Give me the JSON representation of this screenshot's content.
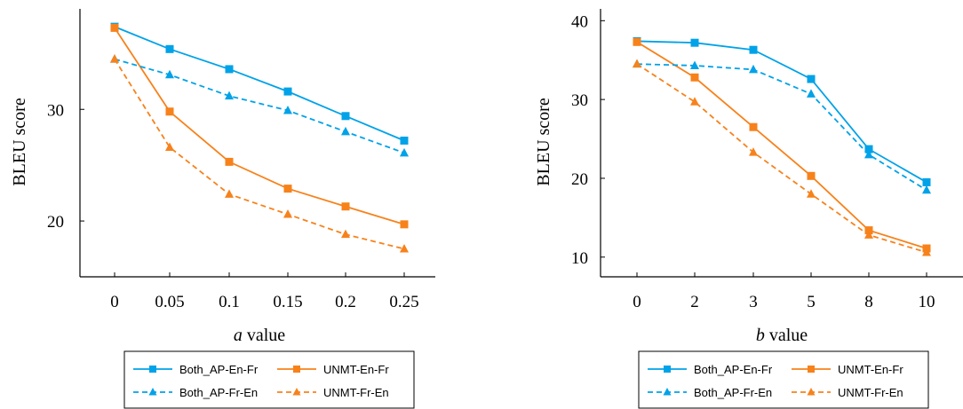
{
  "figure": {
    "colors": {
      "both": "#00a2e8",
      "unmt": "#f7821b"
    },
    "legend": [
      {
        "name": "Both_AP-En-Fr",
        "color": "#00a2e8",
        "dash": false,
        "marker": "square"
      },
      {
        "name": "UNMT-En-Fr",
        "color": "#f7821b",
        "dash": false,
        "marker": "square"
      },
      {
        "name": "Both_AP-Fr-En",
        "color": "#00a2e8",
        "dash": true,
        "marker": "triangle"
      },
      {
        "name": "UNMT-Fr-En",
        "color": "#f7821b",
        "dash": true,
        "marker": "triangle"
      }
    ]
  },
  "chart_data": [
    {
      "type": "line",
      "xlabel_var": "a",
      "xlabel_rest": " value",
      "ylabel": "BLEU score",
      "categories": [
        "0",
        "0.05",
        "0.1",
        "0.15",
        "0.2",
        "0.25"
      ],
      "ylim": [
        15,
        39
      ],
      "yticks": [
        20,
        30
      ],
      "grid": false,
      "legend_position": "below",
      "series": [
        {
          "name": "Both_AP-En-Fr",
          "color": "#00a2e8",
          "dash": false,
          "marker": "square",
          "values": [
            37.4,
            35.4,
            33.6,
            31.6,
            29.4,
            27.2
          ]
        },
        {
          "name": "UNMT-En-Fr",
          "color": "#f7821b",
          "dash": false,
          "marker": "square",
          "values": [
            37.3,
            29.8,
            25.3,
            22.9,
            21.3,
            19.7
          ]
        },
        {
          "name": "Both_AP-Fr-En",
          "color": "#00a2e8",
          "dash": true,
          "marker": "triangle",
          "values": [
            34.5,
            33.1,
            31.2,
            29.9,
            28.0,
            26.1
          ]
        },
        {
          "name": "UNMT-Fr-En",
          "color": "#f7821b",
          "dash": true,
          "marker": "triangle",
          "values": [
            34.5,
            26.6,
            22.4,
            20.6,
            18.8,
            17.5
          ]
        }
      ]
    },
    {
      "type": "line",
      "xlabel_var": "b",
      "xlabel_rest": " value",
      "ylabel": "BLEU score",
      "categories": [
        "0",
        "2",
        "3",
        "5",
        "8",
        "10"
      ],
      "ylim": [
        7.5,
        41.5
      ],
      "yticks": [
        10,
        20,
        30,
        40
      ],
      "grid": false,
      "legend_position": "below",
      "series": [
        {
          "name": "Both_AP-En-Fr",
          "color": "#00a2e8",
          "dash": false,
          "marker": "square",
          "values": [
            37.4,
            37.2,
            36.3,
            32.6,
            23.7,
            19.5
          ]
        },
        {
          "name": "UNMT-En-Fr",
          "color": "#f7821b",
          "dash": false,
          "marker": "square",
          "values": [
            37.3,
            32.8,
            26.5,
            20.3,
            13.4,
            11.1
          ]
        },
        {
          "name": "Both_AP-Fr-En",
          "color": "#00a2e8",
          "dash": true,
          "marker": "triangle",
          "values": [
            34.5,
            34.3,
            33.8,
            30.7,
            23.0,
            18.5
          ]
        },
        {
          "name": "UNMT-Fr-En",
          "color": "#f7821b",
          "dash": true,
          "marker": "triangle",
          "values": [
            34.5,
            29.7,
            23.3,
            18.0,
            12.8,
            10.6
          ]
        }
      ]
    }
  ]
}
